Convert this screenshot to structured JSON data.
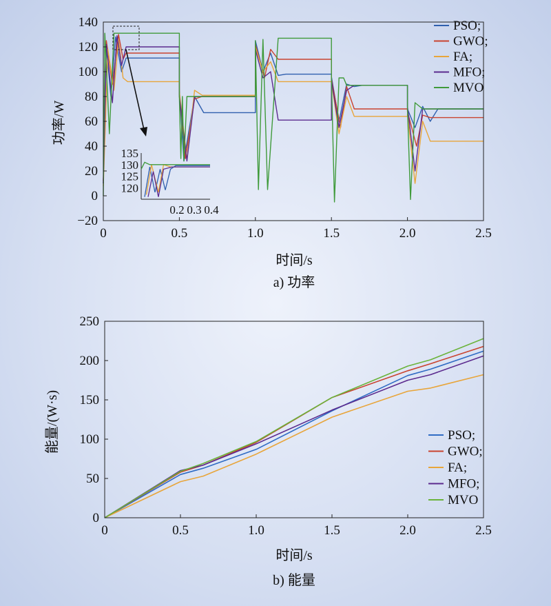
{
  "figure": {
    "panels": [
      {
        "id": "a",
        "caption": "a) 功率",
        "legend": [
          {
            "label": "PSO;",
            "color": "#2f5fae"
          },
          {
            "label": "GWO;",
            "color": "#c9432f"
          },
          {
            "label": "FA;",
            "color": "#e8a53a"
          },
          {
            "label": "MFO;",
            "color": "#5b2a8e"
          },
          {
            "label": "MVO",
            "color": "#3f9a3a"
          }
        ]
      },
      {
        "id": "b",
        "caption": "b) 能量",
        "legend": [
          {
            "label": "PSO;",
            "color": "#2f6bc4"
          },
          {
            "label": "GWO;",
            "color": "#c9432f"
          },
          {
            "label": "FA;",
            "color": "#e8a53a"
          },
          {
            "label": "MFO;",
            "color": "#5b2a8e"
          },
          {
            "label": "MVO",
            "color": "#6ab33a"
          }
        ]
      }
    ]
  },
  "chart_data": [
    {
      "type": "line",
      "title": "",
      "caption": "a) 功率",
      "xlabel": "时间/s",
      "ylabel": "功率/W",
      "xlim": [
        0,
        2.5
      ],
      "ylim": [
        -20,
        140
      ],
      "xticks": [
        "0",
        "0.5",
        "1.0",
        "1.5",
        "2.0",
        "2.5"
      ],
      "yticks": [
        "−20",
        "0",
        "20",
        "40",
        "60",
        "80",
        "100",
        "120",
        "140"
      ],
      "legend_position": "top-right",
      "series": [
        {
          "name": "PSO;",
          "color": "#2f5fae",
          "x": [
            0,
            0.02,
            0.05,
            0.08,
            0.12,
            0.15,
            0.5,
            0.5,
            0.53,
            0.6,
            0.66,
            0.7,
            1.0,
            1.0,
            1.05,
            1.1,
            1.15,
            1.2,
            1.5,
            1.5,
            1.55,
            1.6,
            1.65,
            1.7,
            2.0,
            2.0,
            2.05,
            2.1,
            2.15,
            2.2,
            2.5
          ],
          "y": [
            10,
            120,
            80,
            128,
            100,
            111,
            111,
            85,
            28,
            80,
            67,
            67,
            67,
            125,
            100,
            115,
            97,
            98,
            98,
            96,
            60,
            90,
            88,
            89,
            89,
            70,
            55,
            72,
            60,
            70,
            70
          ]
        },
        {
          "name": "GWO;",
          "color": "#c9432f",
          "x": [
            0,
            0.02,
            0.06,
            0.1,
            0.13,
            0.15,
            0.5,
            0.5,
            0.54,
            0.6,
            0.65,
            0.7,
            1.0,
            1.0,
            1.06,
            1.1,
            1.15,
            1.2,
            1.5,
            1.5,
            1.56,
            1.6,
            1.65,
            1.7,
            2.0,
            2.0,
            2.06,
            2.1,
            2.15,
            2.2,
            2.5
          ],
          "y": [
            12,
            125,
            90,
            130,
            110,
            115,
            115,
            82,
            30,
            78,
            80,
            80,
            80,
            122,
            95,
            118,
            110,
            110,
            110,
            94,
            55,
            88,
            70,
            70,
            70,
            68,
            40,
            65,
            63,
            63,
            63
          ]
        },
        {
          "name": "FA;",
          "color": "#e8a53a",
          "x": [
            0,
            0.03,
            0.07,
            0.1,
            0.13,
            0.16,
            0.5,
            0.5,
            0.55,
            0.6,
            0.65,
            0.7,
            1.0,
            1.0,
            1.05,
            1.1,
            1.15,
            1.2,
            1.5,
            1.5,
            1.55,
            1.6,
            1.65,
            1.7,
            2.0,
            2.0,
            2.05,
            2.1,
            2.15,
            2.2,
            2.5
          ],
          "y": [
            8,
            118,
            85,
            126,
            95,
            92,
            92,
            84,
            29,
            85,
            81,
            81,
            81,
            120,
            100,
            108,
            92,
            92,
            92,
            92,
            50,
            80,
            64,
            64,
            64,
            66,
            10,
            60,
            44,
            44,
            44
          ]
        },
        {
          "name": "MFO;",
          "color": "#5b2a8e",
          "x": [
            0,
            0.02,
            0.06,
            0.09,
            0.12,
            0.15,
            0.5,
            0.5,
            0.55,
            0.6,
            0.65,
            0.7,
            1.0,
            1.0,
            1.05,
            1.1,
            1.15,
            1.2,
            1.5,
            1.5,
            1.55,
            1.6,
            1.65,
            1.7,
            2.0,
            2.0,
            2.05,
            2.1,
            2.15,
            2.2,
            2.5
          ],
          "y": [
            10,
            122,
            75,
            129,
            105,
            120,
            120,
            80,
            28,
            80,
            80,
            80,
            80,
            118,
            95,
            100,
            61,
            61,
            61,
            93,
            55,
            85,
            89,
            89,
            89,
            72,
            20,
            70,
            70,
            70,
            70
          ]
        },
        {
          "name": "MVO",
          "color": "#3f9a3a",
          "x": [
            0,
            0.01,
            0.04,
            0.07,
            0.1,
            0.12,
            0.5,
            0.5,
            0.51,
            0.52,
            0.53,
            0.55,
            1.0,
            1.0,
            1.02,
            1.05,
            1.08,
            1.15,
            1.5,
            1.5,
            1.52,
            1.55,
            1.58,
            1.6,
            2.0,
            2.0,
            2.02,
            2.05,
            2.1,
            2.15,
            2.5
          ],
          "y": [
            0,
            131,
            50,
            131,
            131,
            131,
            131,
            80,
            30,
            80,
            28,
            80,
            80,
            125,
            5,
            126,
            5,
            127,
            127,
            95,
            -5,
            95,
            95,
            89,
            89,
            70,
            -3,
            75,
            70,
            70,
            70
          ]
        }
      ],
      "inset": {
        "xlim": [
          0,
          0.4
        ],
        "ylim": [
          115,
          135
        ],
        "xticks": [
          "0.2",
          "0.3",
          "0.4"
        ],
        "yticks": [
          "120",
          "125",
          "130",
          "135"
        ]
      }
    },
    {
      "type": "line",
      "title": "",
      "caption": "b) 能量",
      "xlabel": "时间/s",
      "ylabel": "能量/(W·s)",
      "xlim": [
        0,
        2.5
      ],
      "ylim": [
        0,
        250
      ],
      "xticks": [
        "0",
        "0.5",
        "1.0",
        "1.5",
        "2.0",
        "2.5"
      ],
      "yticks": [
        "0",
        "50",
        "100",
        "150",
        "200",
        "250"
      ],
      "legend_position": "lower-right",
      "series": [
        {
          "name": "PSO;",
          "color": "#2f6bc4",
          "x": [
            0,
            0.5,
            0.65,
            1.0,
            1.5,
            2.0,
            2.15,
            2.5
          ],
          "y": [
            0,
            55,
            63,
            87,
            136,
            181,
            189,
            212
          ]
        },
        {
          "name": "GWO;",
          "color": "#c9432f",
          "x": [
            0,
            0.5,
            0.65,
            1.0,
            1.5,
            2.0,
            2.15,
            2.5
          ],
          "y": [
            0,
            58,
            67,
            96,
            153,
            187,
            196,
            218
          ]
        },
        {
          "name": "FA;",
          "color": "#e8a53a",
          "x": [
            0,
            0.5,
            0.65,
            1.0,
            1.5,
            2.0,
            2.15,
            2.5
          ],
          "y": [
            0,
            46,
            53,
            81,
            128,
            161,
            165,
            182
          ]
        },
        {
          "name": "MFO;",
          "color": "#5b2a8e",
          "x": [
            0,
            0.5,
            0.65,
            1.0,
            1.5,
            2.0,
            2.15,
            2.5
          ],
          "y": [
            0,
            60,
            67,
            94,
            137,
            175,
            182,
            206
          ]
        },
        {
          "name": "MVO",
          "color": "#6ab33a",
          "x": [
            0,
            0.5,
            0.65,
            1.0,
            1.5,
            2.0,
            2.15,
            2.5
          ],
          "y": [
            0,
            59,
            69,
            97,
            153,
            193,
            201,
            228
          ]
        }
      ]
    }
  ]
}
